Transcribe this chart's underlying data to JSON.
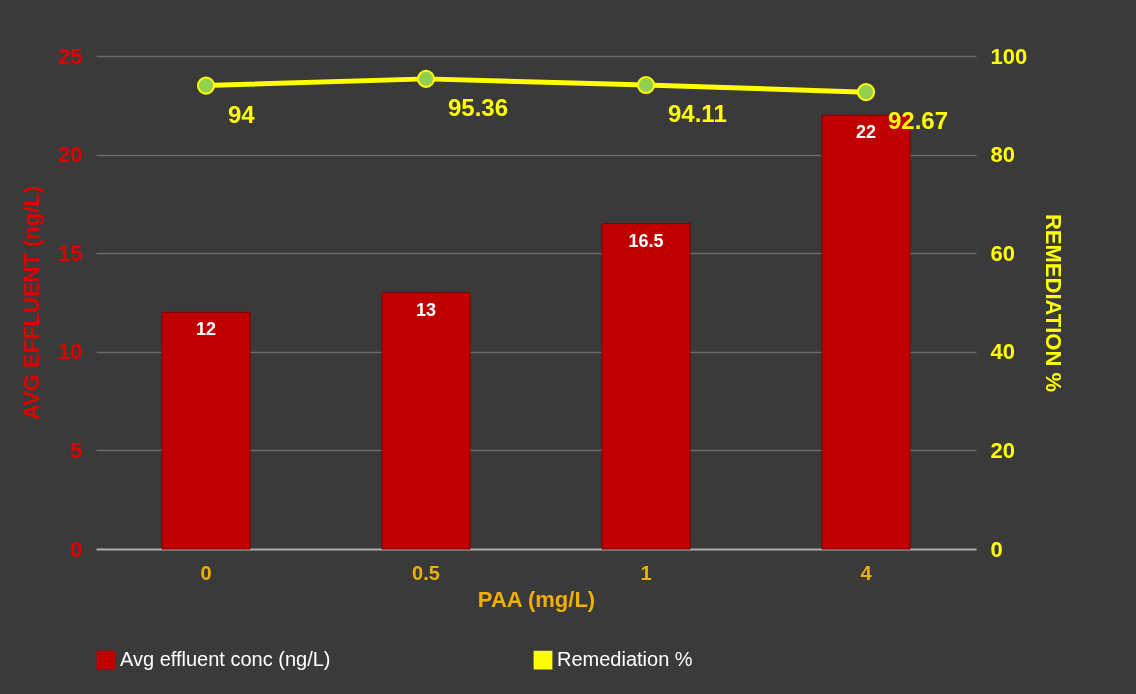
{
  "chart_data": {
    "type": "bar",
    "xlabel": "PAA (mg/L)",
    "ylabel": "AVG EFFLUENT (ng/L)",
    "y2label": "REMEDIATION %",
    "categories": [
      "0",
      "0.5",
      "1",
      "4"
    ],
    "series": [
      {
        "name": "Avg effluent conc (ng/L)",
        "color": "#c00000",
        "values": [
          12,
          13,
          16.5,
          22
        ]
      },
      {
        "name": "Remediation %",
        "type": "line",
        "axis": "y2",
        "color": "#ffff00",
        "values": [
          94,
          95.36,
          94.11,
          92.67
        ]
      }
    ],
    "ylim": [
      0,
      25
    ],
    "yticks": [
      0,
      5,
      10,
      15,
      20,
      25
    ],
    "y2lim": [
      0,
      100
    ],
    "y2ticks": [
      0,
      20,
      40,
      60,
      80,
      100
    ],
    "grid": "y",
    "legend": "bottom",
    "marker": "circle",
    "data_labels": true
  }
}
